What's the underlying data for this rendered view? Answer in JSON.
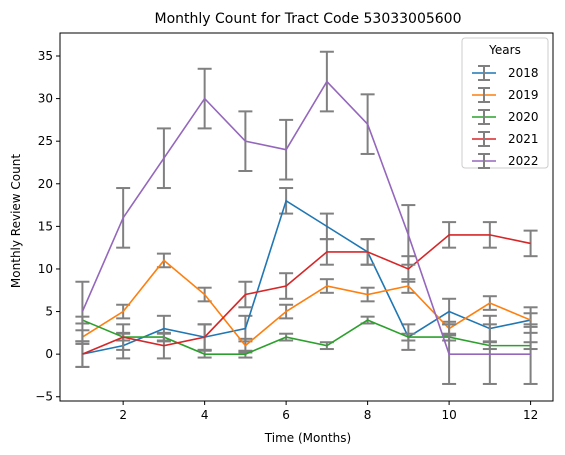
{
  "chart_data": {
    "type": "line",
    "title": "Monthly Count for Tract Code 53033005600",
    "xlabel": "Time (Months)",
    "ylabel": "Monthly Review Count",
    "xlim": [
      0.45,
      12.55
    ],
    "ylim": [
      -5.5,
      37.7
    ],
    "xticks": [
      2,
      4,
      6,
      8,
      10,
      12
    ],
    "yticks": [
      -5,
      0,
      5,
      10,
      15,
      20,
      25,
      30,
      35
    ],
    "grid": false,
    "legend_title": "Years",
    "legend_position": "top-right",
    "x": [
      1,
      2,
      3,
      4,
      5,
      6,
      7,
      8,
      9,
      10,
      11,
      12
    ],
    "series": [
      {
        "name": "2018",
        "color": "#1f77b4",
        "values": [
          0,
          1,
          3,
          2,
          3,
          18,
          15,
          12,
          2,
          5,
          3,
          4
        ],
        "error": [
          1.5,
          1.5,
          1.5,
          1.5,
          1.5,
          1.5,
          1.5,
          1.5,
          1.5,
          1.5,
          1.5,
          1.5
        ]
      },
      {
        "name": "2019",
        "color": "#ff7f0e",
        "values": [
          2,
          5,
          11,
          7,
          1,
          5,
          8,
          7,
          8,
          3,
          6,
          4
        ],
        "error": [
          0.8,
          0.8,
          0.8,
          0.8,
          0.8,
          0.8,
          0.8,
          0.8,
          0.8,
          0.8,
          0.8,
          0.8
        ]
      },
      {
        "name": "2020",
        "color": "#2ca02c",
        "values": [
          4,
          2,
          2,
          0,
          0,
          2,
          1,
          4,
          2,
          2,
          1,
          1
        ],
        "error": [
          0.4,
          0.4,
          0.4,
          0.4,
          0.4,
          0.4,
          0.4,
          0.4,
          0.4,
          0.4,
          0.4,
          0.4
        ]
      },
      {
        "name": "2021",
        "color": "#d62728",
        "values": [
          0,
          2,
          1,
          2,
          7,
          8,
          12,
          12,
          10,
          14,
          14,
          13
        ],
        "error": [
          1.5,
          1.5,
          1.5,
          1.5,
          1.5,
          1.5,
          1.5,
          1.5,
          1.5,
          1.5,
          1.5,
          1.5
        ]
      },
      {
        "name": "2022",
        "color": "#9467bd",
        "values": [
          5,
          16,
          23,
          30,
          25,
          24,
          32,
          27,
          14,
          0,
          0,
          0
        ],
        "error": [
          3.5,
          3.5,
          3.5,
          3.5,
          3.5,
          3.5,
          3.5,
          3.5,
          3.5,
          3.5,
          3.5,
          3.5
        ]
      }
    ],
    "errorbar_color": "#808080"
  }
}
